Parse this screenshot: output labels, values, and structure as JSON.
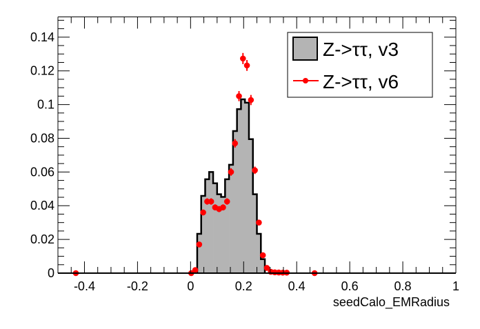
{
  "chart_data": {
    "type": "bar",
    "title": "",
    "xlabel": "seedCalo_EMRadius",
    "ylabel": "",
    "xlim": [
      -0.5,
      1.0
    ],
    "ylim": [
      0,
      0.152
    ],
    "grid": false,
    "legend_placement": "top-right",
    "xticks": [
      "-0.4",
      "-0.2",
      "0",
      "0.2",
      "0.4",
      "0.6",
      "0.8",
      "1"
    ],
    "xtick_values": [
      -0.4,
      -0.2,
      0,
      0.2,
      0.4,
      0.6,
      0.8,
      1.0
    ],
    "yticks": [
      "0",
      "0.02",
      "0.04",
      "0.06",
      "0.08",
      "0.1",
      "0.12",
      "0.14"
    ],
    "ytick_values": [
      0,
      0.02,
      0.04,
      0.06,
      0.08,
      0.1,
      0.12,
      0.14
    ],
    "series": [
      {
        "name": "Z->ττ, v3",
        "style": "filled-histogram",
        "color": "#b4b4b4",
        "line_color": "#000000",
        "bin_width": 0.015,
        "bin_low_edges": [
          0.025,
          0.04,
          0.055,
          0.07,
          0.085,
          0.1,
          0.115,
          0.13,
          0.145,
          0.16,
          0.175,
          0.19,
          0.205,
          0.22,
          0.235,
          0.25,
          0.265
        ],
        "values": [
          0.0233,
          0.0458,
          0.0557,
          0.06,
          0.0533,
          0.0468,
          0.0452,
          0.0557,
          0.0643,
          0.0843,
          0.0973,
          0.1031,
          0.1011,
          0.0795,
          0.0468,
          0.0233,
          0.0083
        ]
      },
      {
        "name": "Z->ττ, v6",
        "style": "markers-with-errors",
        "color": "#ff0000",
        "x": [
          -0.4325,
          0.0025,
          0.0175,
          0.0325,
          0.0475,
          0.0625,
          0.0775,
          0.0925,
          0.1075,
          0.1225,
          0.1375,
          0.1525,
          0.1675,
          0.1825,
          0.1975,
          0.2125,
          0.2275,
          0.2425,
          0.2575,
          0.2725,
          0.2875,
          0.3025,
          0.3175,
          0.3325,
          0.3475,
          0.3625,
          0.4675
        ],
        "y": [
          0,
          0,
          0.0018,
          0.017,
          0.036,
          0.0425,
          0.0425,
          0.039,
          0.038,
          0.039,
          0.0425,
          0.06,
          0.077,
          0.105,
          0.1273,
          0.1232,
          0.1027,
          0.061,
          0.03,
          0.0106,
          0.0031,
          0.0008,
          0.0005,
          0.0004,
          0.0003,
          0.0003,
          0
        ],
        "yerr": [
          0,
          0,
          0.0005,
          0.0012,
          0.0017,
          0.0019,
          0.0019,
          0.0018,
          0.0018,
          0.0018,
          0.0019,
          0.0022,
          0.0025,
          0.003,
          0.0033,
          0.0032,
          0.003,
          0.0022,
          0.0016,
          0.001,
          0.0005,
          0.0002,
          0.0002,
          0.0002,
          0.0001,
          0.0001,
          0
        ]
      }
    ]
  }
}
